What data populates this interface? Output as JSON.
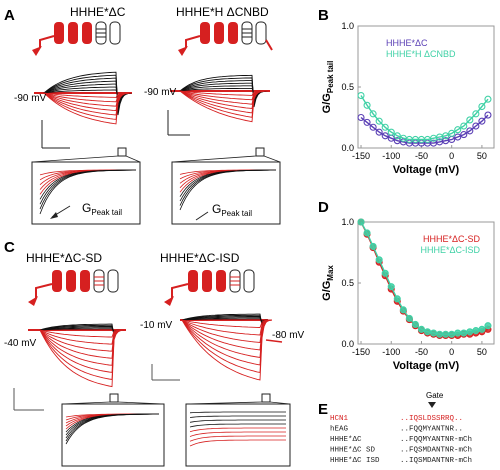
{
  "panels": {
    "A": {
      "letter": "A",
      "construct_left": "HHHE*ΔC",
      "construct_right": "HHHE*H ΔCNBD",
      "vhold_left": "-90 mV",
      "vhold_right": "-90 mV",
      "peak_tail_left": "G",
      "peak_tail_left_sub": "Peak tail",
      "peak_tail_right": "G",
      "peak_tail_right_sub": "Peak tail"
    },
    "B": {
      "letter": "B"
    },
    "C": {
      "letter": "C",
      "construct_left": "HHHE*ΔC-SD",
      "construct_right": "HHHE*ΔC-ISD",
      "vhold_left": "-40 mV",
      "vhold_right": "-10 mV",
      "vtail_right": "-80 mV"
    },
    "D": {
      "letter": "D"
    },
    "E": {
      "letter": "E",
      "gate_label": "Gate",
      "rows": [
        {
          "name": "HCN1",
          "seq": "..IQSLDSSRRQ..",
          "color": "#d62020",
          "mark": ""
        },
        {
          "name": "hEAG",
          "seq": "..FQQMYANTNR..",
          "color": "#333333",
          "mark": ""
        },
        {
          "name": "HHHE*ΔC",
          "seq": "..FQQMYANTNR-mCh",
          "color": "#333333",
          "mark": ""
        },
        {
          "name": "HHHE*ΔC SD",
          "seq": "..FQSMDANTNR-mCh",
          "color": "#333333",
          "mark": "SD"
        },
        {
          "name": "HHHE*ΔC ISD",
          "seq": "..IQSMDANTNR-mCh",
          "color": "#333333",
          "mark": "ISD"
        }
      ]
    }
  },
  "colors": {
    "red": "#d62020",
    "black": "#111111",
    "blue": "#5a3fb5",
    "teal": "#3fd1a6",
    "gray": "#9a9a9a"
  },
  "chart_data": [
    {
      "type": "scatter",
      "panel": "B",
      "xlabel": "Voltage (mV)",
      "ylabel": "G/G",
      "ylabel_sub": "Peak tail",
      "xlim": [
        -155,
        70
      ],
      "ylim": [
        0,
        1.0
      ],
      "xticks": [
        -150,
        -100,
        -50,
        0,
        50
      ],
      "yticks": [
        0.0,
        0.5,
        1.0
      ],
      "xtick_labels": [
        "-150",
        "-100",
        "-50",
        "0",
        "50"
      ],
      "ytick_labels": [
        "0.0",
        "0.5",
        "1.0"
      ],
      "legend_position": "top-left",
      "series": [
        {
          "name": "HHHE*ΔC",
          "color": "#5a3fb5",
          "x": [
            -150,
            -140,
            -130,
            -120,
            -110,
            -100,
            -90,
            -80,
            -70,
            -60,
            -50,
            -40,
            -30,
            -20,
            -10,
            0,
            10,
            20,
            30,
            40,
            50,
            60
          ],
          "y": [
            0.25,
            0.21,
            0.17,
            0.13,
            0.1,
            0.08,
            0.06,
            0.05,
            0.04,
            0.04,
            0.04,
            0.04,
            0.04,
            0.05,
            0.06,
            0.07,
            0.09,
            0.11,
            0.14,
            0.18,
            0.22,
            0.27
          ]
        },
        {
          "name": "HHHE*H ΔCNBD",
          "color": "#3fd1a6",
          "x": [
            -150,
            -140,
            -130,
            -120,
            -110,
            -100,
            -90,
            -80,
            -70,
            -60,
            -50,
            -40,
            -30,
            -20,
            -10,
            0,
            10,
            20,
            30,
            40,
            50,
            60
          ],
          "y": [
            0.43,
            0.35,
            0.28,
            0.22,
            0.17,
            0.13,
            0.1,
            0.08,
            0.07,
            0.07,
            0.07,
            0.07,
            0.08,
            0.09,
            0.1,
            0.12,
            0.15,
            0.18,
            0.23,
            0.28,
            0.34,
            0.4
          ]
        }
      ]
    },
    {
      "type": "scatter",
      "panel": "D",
      "xlabel": "Voltage (mV)",
      "ylabel": "G/G",
      "ylabel_sub": "Max",
      "xlim": [
        -155,
        70
      ],
      "ylim": [
        0,
        1.0
      ],
      "xticks": [
        -150,
        -100,
        -50,
        0,
        50
      ],
      "yticks": [
        0.0,
        0.5,
        1.0
      ],
      "xtick_labels": [
        "-150",
        "-100",
        "-50",
        "0",
        "50"
      ],
      "ytick_labels": [
        "0.0",
        "0.5",
        "1.0"
      ],
      "legend_position": "top-right",
      "series": [
        {
          "name": "HHHE*ΔC-SD",
          "color": "#d62020",
          "x": [
            -150,
            -140,
            -130,
            -120,
            -110,
            -100,
            -90,
            -80,
            -70,
            -60,
            -50,
            -40,
            -30,
            -20,
            -10,
            0,
            10,
            20,
            30,
            40,
            50,
            60
          ],
          "y": [
            1.0,
            0.9,
            0.79,
            0.67,
            0.56,
            0.45,
            0.35,
            0.27,
            0.2,
            0.15,
            0.11,
            0.09,
            0.08,
            0.07,
            0.07,
            0.07,
            0.07,
            0.08,
            0.08,
            0.09,
            0.1,
            0.12
          ]
        },
        {
          "name": "HHHE*ΔC-ISD",
          "color": "#3fd1a6",
          "x": [
            -150,
            -140,
            -130,
            -120,
            -110,
            -100,
            -90,
            -80,
            -70,
            -60,
            -50,
            -40,
            -30,
            -20,
            -10,
            0,
            10,
            20,
            30,
            40,
            50,
            60
          ],
          "y": [
            1.0,
            0.91,
            0.8,
            0.69,
            0.58,
            0.47,
            0.37,
            0.28,
            0.21,
            0.16,
            0.12,
            0.1,
            0.09,
            0.08,
            0.08,
            0.08,
            0.09,
            0.09,
            0.1,
            0.11,
            0.12,
            0.15
          ]
        }
      ]
    }
  ]
}
